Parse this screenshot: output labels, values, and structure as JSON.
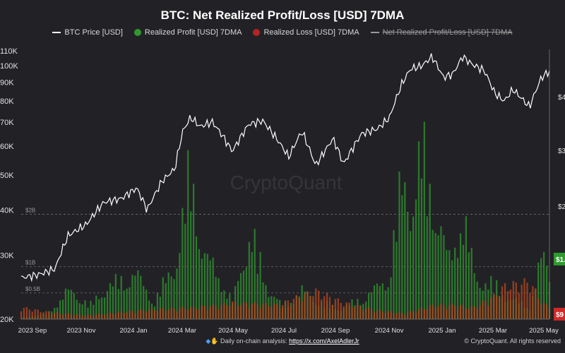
{
  "header": {
    "title": "BTC: Net Realized Profit/Loss [USD] 7DMA"
  },
  "legend": [
    {
      "label": "BTC Price [USD]",
      "kind": "line",
      "color": "#ffffff"
    },
    {
      "label": "Realized Profit [USD] 7DMA",
      "kind": "dot",
      "color": "#2e9a2e"
    },
    {
      "label": "Realized Loss [USD] 7DMA",
      "kind": "dot",
      "color": "#b82222"
    },
    {
      "label": "Net Realized Profit/Loss [USD] 7DMA",
      "kind": "line-strike",
      "color": "#9a9a9a"
    }
  ],
  "footer": {
    "prefix": "Daily on-chain analysis:",
    "link": "https://x.com/AxelAdlerJr",
    "copyright": "© CryptoQuant. All rights reserved"
  },
  "watermark": "CryptoQuant",
  "chart_data": {
    "type": "line",
    "title": "BTC: Net Realized Profit/Loss [USD] 7DMA",
    "x_tick_labels": [
      "2023 Sep",
      "2023 Nov",
      "2024 Jan",
      "2024 Mar",
      "2024 May",
      "2024 Jul",
      "2024 Sep",
      "2024 Nov",
      "2025 Jan",
      "2025 Mar",
      "2025 May"
    ],
    "x_range": [
      "2023-09-01",
      "2025-05-01"
    ],
    "left_axis": {
      "scale": "log",
      "tick_labels": [
        "20K",
        "30K",
        "40K",
        "50K",
        "60K",
        "70K",
        "80K",
        "90K",
        "100K",
        "110K"
      ],
      "tick_values": [
        20000,
        30000,
        40000,
        50000,
        60000,
        70000,
        80000,
        90000,
        100000,
        110000
      ],
      "range": [
        20000,
        110000
      ]
    },
    "right_axis": {
      "scale": "linear",
      "guide_labels": [
        "$0.5B",
        "$1B",
        "$2B"
      ],
      "guide_values": [
        500000000,
        1000000000,
        2000000000
      ],
      "partial_tick_labels": [
        "$4",
        "$3",
        "$2"
      ],
      "last_value_labels": [
        {
          "text": "$1.",
          "series": "Realized Profit [USD] 7DMA",
          "color": "#2e9a2e"
        },
        {
          "text": "$9",
          "series": "Realized Loss [USD] 7DMA",
          "color": "#d02a2a"
        }
      ]
    },
    "series": [
      {
        "name": "BTC Price [USD]",
        "axis": "left",
        "color": "#ffffff",
        "points": [
          [
            "2023-09-01",
            26000
          ],
          [
            "2023-09-20",
            26500
          ],
          [
            "2023-10-10",
            27500
          ],
          [
            "2023-10-25",
            34000
          ],
          [
            "2023-11-15",
            36500
          ],
          [
            "2023-12-05",
            42000
          ],
          [
            "2023-12-25",
            43000
          ],
          [
            "2024-01-12",
            46000
          ],
          [
            "2024-01-24",
            40000
          ],
          [
            "2024-02-10",
            48000
          ],
          [
            "2024-02-25",
            52000
          ],
          [
            "2024-03-05",
            66000
          ],
          [
            "2024-03-14",
            72000
          ],
          [
            "2024-03-25",
            68000
          ],
          [
            "2024-04-08",
            70000
          ],
          [
            "2024-04-20",
            64000
          ],
          [
            "2024-05-01",
            58000
          ],
          [
            "2024-05-20",
            69000
          ],
          [
            "2024-06-05",
            70500
          ],
          [
            "2024-06-25",
            61000
          ],
          [
            "2024-07-05",
            56000
          ],
          [
            "2024-07-20",
            66000
          ],
          [
            "2024-08-05",
            53000
          ],
          [
            "2024-08-25",
            63000
          ],
          [
            "2024-09-06",
            53500
          ],
          [
            "2024-09-27",
            65000
          ],
          [
            "2024-10-15",
            67000
          ],
          [
            "2024-10-29",
            72000
          ],
          [
            "2024-11-12",
            89000
          ],
          [
            "2024-11-22",
            98000
          ],
          [
            "2024-12-05",
            100000
          ],
          [
            "2024-12-17",
            106000
          ],
          [
            "2024-12-30",
            93000
          ],
          [
            "2025-01-10",
            95000
          ],
          [
            "2025-01-21",
            106000
          ],
          [
            "2025-02-01",
            101000
          ],
          [
            "2025-02-15",
            97000
          ],
          [
            "2025-02-27",
            84000
          ],
          [
            "2025-03-10",
            80000
          ],
          [
            "2025-03-20",
            86000
          ],
          [
            "2025-04-08",
            77000
          ],
          [
            "2025-04-22",
            93000
          ],
          [
            "2025-05-01",
            96500
          ]
        ]
      },
      {
        "name": "Realized Profit [USD] 7DMA",
        "axis": "right",
        "color": "#2e9a2e",
        "points": [
          [
            "2023-09-01",
            40000000
          ],
          [
            "2023-10-01",
            120000000
          ],
          [
            "2023-10-25",
            700000000
          ],
          [
            "2023-11-20",
            350000000
          ],
          [
            "2023-12-10",
            800000000
          ],
          [
            "2024-01-12",
            1100000000
          ],
          [
            "2024-02-01",
            400000000
          ],
          [
            "2024-02-28",
            1500000000
          ],
          [
            "2024-03-14",
            3700000000
          ],
          [
            "2024-03-28",
            1600000000
          ],
          [
            "2024-04-12",
            1200000000
          ],
          [
            "2024-05-01",
            400000000
          ],
          [
            "2024-05-22",
            2100000000
          ],
          [
            "2024-06-10",
            800000000
          ],
          [
            "2024-06-28",
            300000000
          ],
          [
            "2024-07-20",
            700000000
          ],
          [
            "2024-08-10",
            400000000
          ],
          [
            "2024-09-01",
            250000000
          ],
          [
            "2024-09-28",
            500000000
          ],
          [
            "2024-10-28",
            1000000000
          ],
          [
            "2024-11-12",
            3300000000
          ],
          [
            "2024-11-25",
            2900000000
          ],
          [
            "2024-12-05",
            4100000000
          ],
          [
            "2024-12-17",
            3000000000
          ],
          [
            "2025-01-05",
            1400000000
          ],
          [
            "2025-01-21",
            2500000000
          ],
          [
            "2025-02-05",
            1000000000
          ],
          [
            "2025-02-28",
            800000000
          ],
          [
            "2025-03-15",
            500000000
          ],
          [
            "2025-04-09",
            300000000
          ],
          [
            "2025-04-23",
            1600000000
          ],
          [
            "2025-05-01",
            1100000000
          ]
        ]
      },
      {
        "name": "Realized Loss [USD] 7DMA",
        "axis": "right",
        "color": "#b82222",
        "points": [
          [
            "2023-09-01",
            250000000
          ],
          [
            "2023-10-01",
            150000000
          ],
          [
            "2023-11-15",
            80000000
          ],
          [
            "2024-01-24",
            200000000
          ],
          [
            "2024-03-20",
            250000000
          ],
          [
            "2024-04-18",
            300000000
          ],
          [
            "2024-05-01",
            350000000
          ],
          [
            "2024-06-25",
            300000000
          ],
          [
            "2024-07-05",
            400000000
          ],
          [
            "2024-08-05",
            600000000
          ],
          [
            "2024-09-06",
            350000000
          ],
          [
            "2024-10-10",
            200000000
          ],
          [
            "2024-11-15",
            120000000
          ],
          [
            "2024-12-20",
            300000000
          ],
          [
            "2025-01-10",
            300000000
          ],
          [
            "2025-02-03",
            250000000
          ],
          [
            "2025-02-27",
            500000000
          ],
          [
            "2025-03-10",
            700000000
          ],
          [
            "2025-04-08",
            800000000
          ],
          [
            "2025-04-23",
            350000000
          ],
          [
            "2025-05-01",
            250000000
          ]
        ]
      }
    ],
    "grid": false
  }
}
